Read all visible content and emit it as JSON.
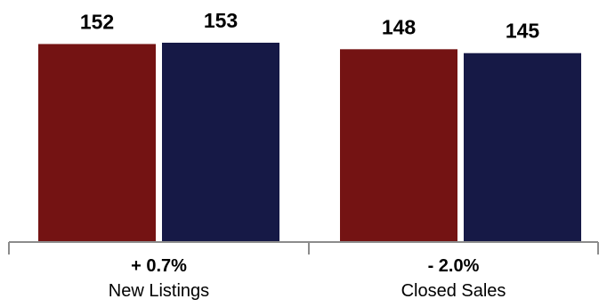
{
  "chart_data": {
    "type": "bar",
    "categories": [
      "New Listings",
      "Closed Sales"
    ],
    "changes": [
      "+ 0.7%",
      "- 2.0%"
    ],
    "series": [
      {
        "values": [
          152,
          148
        ],
        "color": "#741313"
      },
      {
        "values": [
          153,
          145
        ],
        "color": "#161946"
      }
    ],
    "ylim": [
      0,
      153
    ],
    "grid": false,
    "legend": "none",
    "axis_color": "#8c8c8c"
  }
}
